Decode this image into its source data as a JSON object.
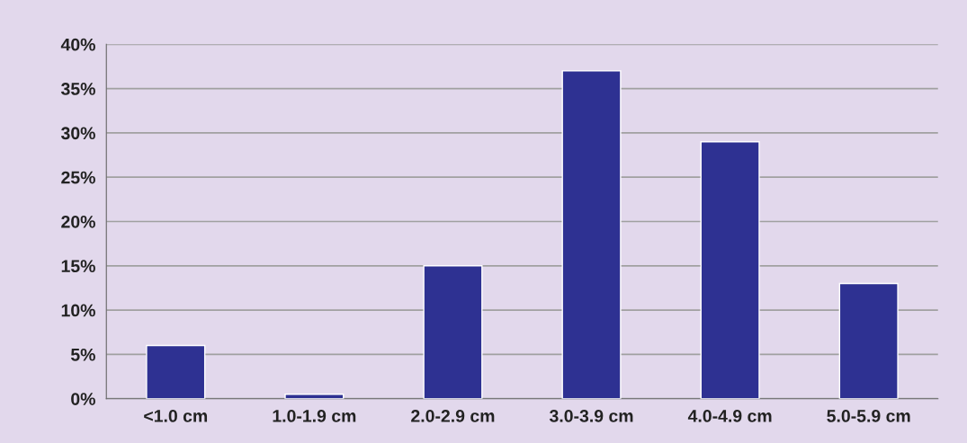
{
  "chart_data": {
    "type": "bar",
    "categories": [
      "<1.0 cm",
      "1.0-1.9 cm",
      "2.0-2.9 cm",
      "3.0-3.9 cm",
      "4.0-4.9 cm",
      "5.0-5.9 cm"
    ],
    "values": [
      6,
      0.5,
      15,
      37,
      29,
      13
    ],
    "color": "#2e3192",
    "ylim": [
      0,
      40
    ],
    "yticks": [
      {
        "value": 0,
        "label": "0%"
      },
      {
        "value": 5,
        "label": "5%"
      },
      {
        "value": 10,
        "label": "10%"
      },
      {
        "value": 15,
        "label": "15%"
      },
      {
        "value": 20,
        "label": "20%"
      },
      {
        "value": 25,
        "label": "25%"
      },
      {
        "value": 30,
        "label": "30%"
      },
      {
        "value": 35,
        "label": "35%"
      },
      {
        "value": 40,
        "label": "40%"
      }
    ],
    "grid": "y"
  }
}
